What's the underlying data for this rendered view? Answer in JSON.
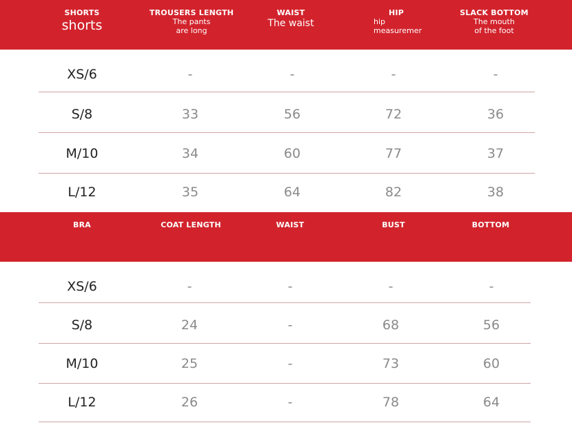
{
  "shorts_table": {
    "headers": [
      {
        "main": "SHORTS",
        "sub": "shorts"
      },
      {
        "main": "TROUSERS LENGTH",
        "sub1": "The pants",
        "sub2": "are long"
      },
      {
        "main": "WAIST",
        "sub": "The waist"
      },
      {
        "main": "HIP",
        "sub1": "hip",
        "sub2": "measuremer"
      },
      {
        "main": "SLACK BOTTOM",
        "sub1": "The mouth",
        "sub2": "of the foot"
      }
    ],
    "rows": [
      {
        "size": "XS/6",
        "values": [
          "-",
          "-",
          "-",
          "-"
        ]
      },
      {
        "size": "S/8",
        "values": [
          "33",
          "56",
          "72",
          "36"
        ]
      },
      {
        "size": "M/10",
        "values": [
          "34",
          "60",
          "77",
          "37"
        ]
      },
      {
        "size": "L/12",
        "values": [
          "35",
          "64",
          "82",
          "38"
        ]
      }
    ]
  },
  "bra_table": {
    "headers": [
      {
        "main": "BRA"
      },
      {
        "main": "COAT LENGTH"
      },
      {
        "main": "WAIST"
      },
      {
        "main": "BUST"
      },
      {
        "main": "BOTTOM"
      }
    ],
    "rows": [
      {
        "size": "XS/6",
        "values": [
          "-",
          "-",
          "-",
          "-"
        ]
      },
      {
        "size": "S/8",
        "values": [
          "24",
          "-",
          "68",
          "56"
        ]
      },
      {
        "size": "M/10",
        "values": [
          "25",
          "-",
          "73",
          "60"
        ]
      },
      {
        "size": "L/12",
        "values": [
          "26",
          "-",
          "78",
          "64"
        ]
      }
    ]
  },
  "colors": {
    "header_red": "#d2232c",
    "rule": "#cfa4a6",
    "value_gray": "#8a8a8a"
  }
}
